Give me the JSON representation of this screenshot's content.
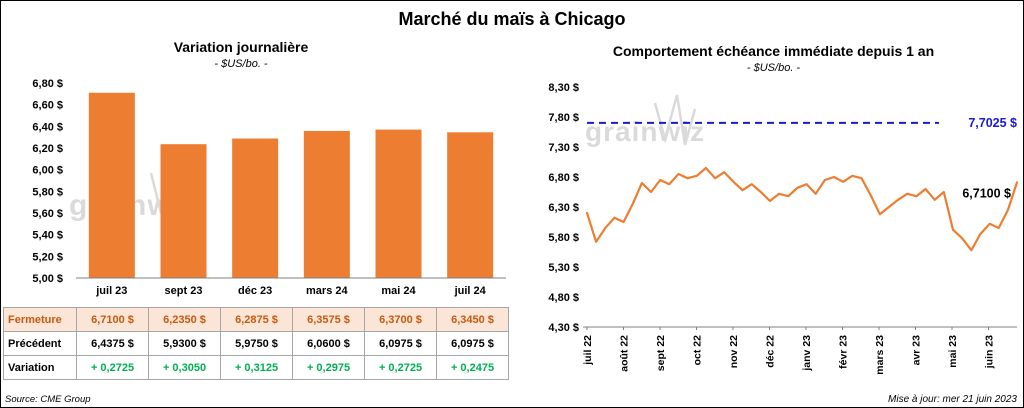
{
  "page": {
    "title": "Marché du maïs à Chicago",
    "source_note": "Source: CME Group",
    "update_note": "Mise à jour: mer 21 juin 2023",
    "watermark": "grainwiz"
  },
  "colors": {
    "bar_orange": "#ED7D31",
    "line_orange": "#ED7D31",
    "dashed_blue": "#1A1ACC",
    "fermeture_bg": "#FBE5D6",
    "fermeture_text": "#C55A11",
    "variation_green": "#00B050",
    "watermark_gray": "#DADADA",
    "axis_gray": "#808080"
  },
  "chart_data": [
    {
      "type": "bar",
      "title": "Variation journalière",
      "subtitle": "- $US/bo. -",
      "categories": [
        "juil 23",
        "sept 23",
        "déc 23",
        "mars 24",
        "mai 24",
        "juil 24"
      ],
      "values": [
        6.71,
        6.235,
        6.2875,
        6.3575,
        6.37,
        6.345
      ],
      "ylim": [
        5.0,
        6.8
      ],
      "ytick_step": 0.2,
      "ytick_labels": [
        "6,80 $",
        "6,60 $",
        "6,40 $",
        "6,20 $",
        "6,00 $",
        "5,80 $",
        "5,60 $",
        "5,40 $",
        "5,20 $",
        "5,00 $"
      ],
      "grid": false,
      "legend": "none"
    },
    {
      "type": "line",
      "title": "Comportement échéance immédiate depuis 1 an",
      "subtitle": "- $US/bo. -",
      "x_labels": [
        "juil 22",
        "août 22",
        "sept 22",
        "oct 22",
        "nov 22",
        "déc 22",
        "janv 23",
        "févr 23",
        "mars 23",
        "avr 23",
        "mai 23",
        "juin 23"
      ],
      "values": [
        6.2,
        5.72,
        5.95,
        6.12,
        6.05,
        6.35,
        6.7,
        6.55,
        6.75,
        6.68,
        6.85,
        6.78,
        6.82,
        6.95,
        6.78,
        6.88,
        6.72,
        6.58,
        6.68,
        6.55,
        6.4,
        6.52,
        6.48,
        6.62,
        6.68,
        6.52,
        6.75,
        6.8,
        6.72,
        6.82,
        6.78,
        6.5,
        6.18,
        6.3,
        6.42,
        6.52,
        6.48,
        6.6,
        6.42,
        6.55,
        5.92,
        5.78,
        5.58,
        5.85,
        6.02,
        5.95,
        6.25,
        6.71
      ],
      "ylim": [
        4.3,
        8.3
      ],
      "ytick_step": 0.5,
      "ytick_labels": [
        "8,30 $",
        "7,80 $",
        "7,30 $",
        "6,80 $",
        "6,30 $",
        "5,80 $",
        "5,30 $",
        "4,80 $",
        "4,30 $"
      ],
      "reference_line": {
        "value": 7.7025,
        "label": "7,7025 $"
      },
      "last_value_label": "6,7100 $",
      "grid": false,
      "legend": "none"
    }
  ],
  "table": {
    "rows": [
      {
        "label": "Fermeture",
        "style": "fermeture",
        "values": [
          "6,7100  $",
          "6,2350  $",
          "6,2875  $",
          "6,3575  $",
          "6,3700  $",
          "6,3450  $"
        ]
      },
      {
        "label": "Précédent",
        "style": "precedent",
        "values": [
          "6,4375  $",
          "5,9300  $",
          "5,9750  $",
          "6,0600  $",
          "6,0975  $",
          "6,0975  $"
        ]
      },
      {
        "label": "Variation",
        "style": "variation",
        "values": [
          "+ 0,2725",
          "+ 0,3050",
          "+ 0,3125",
          "+ 0,2975",
          "+ 0,2725",
          "+ 0,2475"
        ]
      }
    ]
  }
}
